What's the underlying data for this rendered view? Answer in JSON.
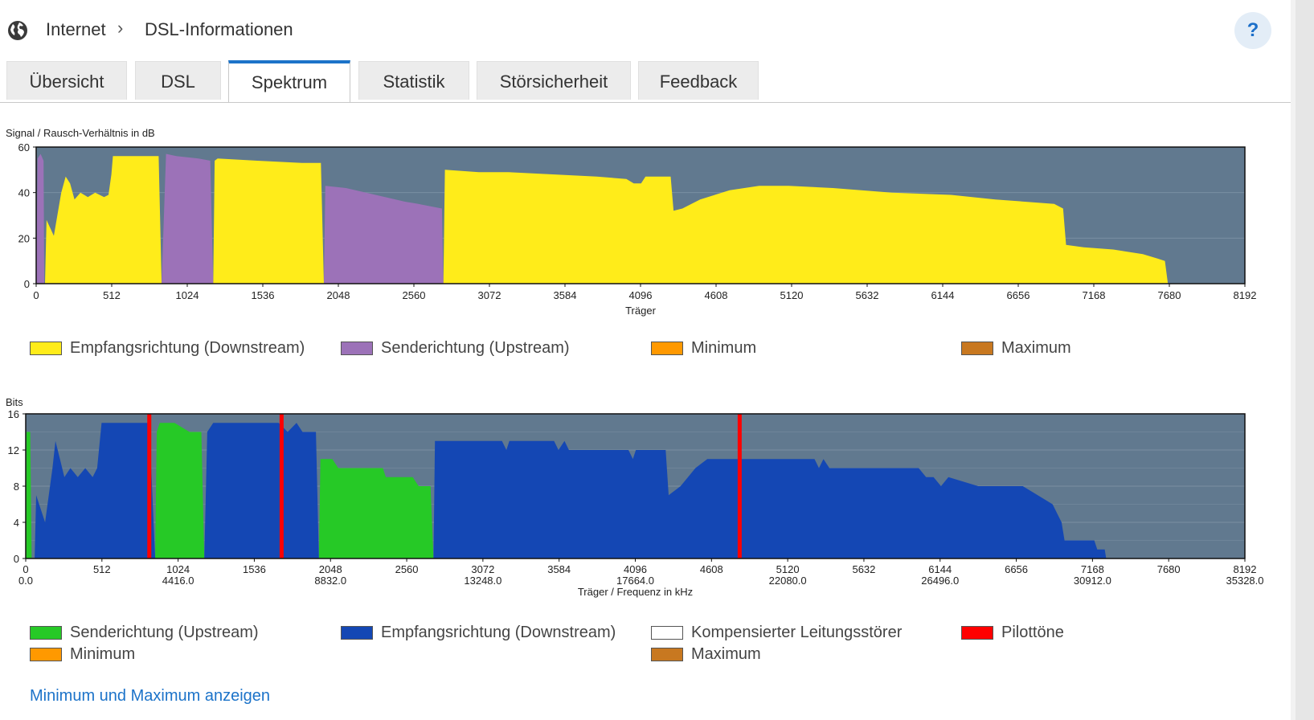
{
  "breadcrumb": {
    "parent": "Internet",
    "separator": "›",
    "current": "DSL-Informationen"
  },
  "help": {
    "label": "?"
  },
  "tabs": [
    {
      "label": "Übersicht",
      "active": false
    },
    {
      "label": "DSL",
      "active": false
    },
    {
      "label": "Spektrum",
      "active": true
    },
    {
      "label": "Statistik",
      "active": false
    },
    {
      "label": "Störsicherheit",
      "active": false
    },
    {
      "label": "Feedback",
      "active": false
    }
  ],
  "colors": {
    "plot_bg": "#61798f",
    "downstream_snr": "#ffec1a",
    "upstream_snr": "#9c72b8",
    "upstream_bits": "#26c926",
    "downstream_bits": "#1447b4",
    "pilot": "#ff0000",
    "minimum": "#ff9900",
    "maximum": "#c87820",
    "compensated": "#ffffff",
    "accent": "#1c73c9"
  },
  "chart_data": [
    {
      "type": "area",
      "title": "Signal / Rausch-Verhältnis in dB",
      "xlabel": "Träger",
      "ylabel": "",
      "xlim": [
        0,
        8192
      ],
      "ylim": [
        0,
        60
      ],
      "xticks": [
        0,
        512,
        1024,
        1536,
        2048,
        2560,
        3072,
        3584,
        4096,
        4608,
        5120,
        5632,
        6144,
        6656,
        7168,
        7680,
        8192
      ],
      "yticks": [
        0,
        20,
        40,
        60
      ],
      "series": [
        {
          "name": "Empfangsrichtung (Downstream)",
          "color_key": "downstream_snr",
          "segments": [
            [
              [
                60,
                0
              ],
              [
                70,
                28
              ],
              [
                120,
                21
              ],
              [
                170,
                40
              ],
              [
                200,
                47
              ],
              [
                230,
                44
              ],
              [
                260,
                37
              ],
              [
                300,
                40
              ],
              [
                350,
                38
              ],
              [
                400,
                40
              ],
              [
                460,
                38
              ],
              [
                490,
                39
              ],
              [
                510,
                48
              ],
              [
                520,
                56
              ],
              [
                700,
                56
              ],
              [
                820,
                56
              ],
              [
                830,
                56
              ],
              [
                850,
                0
              ]
            ],
            [
              [
                1200,
                0
              ],
              [
                1210,
                54
              ],
              [
                1230,
                55
              ],
              [
                1500,
                54
              ],
              [
                1800,
                53
              ],
              [
                1930,
                53
              ],
              [
                1950,
                0
              ]
            ],
            [
              [
                2760,
                0
              ],
              [
                2770,
                50
              ],
              [
                3000,
                49
              ],
              [
                3200,
                49
              ],
              [
                3500,
                48
              ],
              [
                3800,
                47
              ],
              [
                4000,
                46
              ],
              [
                4050,
                44
              ],
              [
                4100,
                44
              ],
              [
                4130,
                47
              ],
              [
                4300,
                47
              ],
              [
                4320,
                32
              ],
              [
                4380,
                33
              ],
              [
                4500,
                37
              ],
              [
                4700,
                41
              ],
              [
                4900,
                43
              ],
              [
                5100,
                43
              ],
              [
                5400,
                42
              ],
              [
                5800,
                40
              ],
              [
                6200,
                39
              ],
              [
                6500,
                37
              ],
              [
                6700,
                36
              ],
              [
                6900,
                35
              ],
              [
                6960,
                33
              ],
              [
                6980,
                17
              ],
              [
                7100,
                16
              ],
              [
                7300,
                15
              ],
              [
                7500,
                13
              ],
              [
                7600,
                11
              ],
              [
                7650,
                10
              ],
              [
                7670,
                0
              ]
            ]
          ]
        },
        {
          "name": "Senderichtung (Upstream)",
          "color_key": "upstream_snr",
          "segments": [
            [
              [
                0,
                0
              ],
              [
                10,
                55
              ],
              [
                30,
                57
              ],
              [
                50,
                54
              ],
              [
                55,
                0
              ]
            ],
            [
              [
                850,
                0
              ],
              [
                880,
                57
              ],
              [
                950,
                56
              ],
              [
                1100,
                55
              ],
              [
                1180,
                54
              ],
              [
                1200,
                0
              ]
            ],
            [
              [
                1950,
                0
              ],
              [
                1960,
                43
              ],
              [
                2100,
                42
              ],
              [
                2300,
                39
              ],
              [
                2500,
                36
              ],
              [
                2590,
                35
              ],
              [
                2750,
                33
              ],
              [
                2760,
                0
              ]
            ]
          ]
        }
      ],
      "legend": [
        {
          "label": "Empfangsrichtung (Downstream)",
          "color_key": "downstream_snr"
        },
        {
          "label": "Senderichtung (Upstream)",
          "color_key": "upstream_snr"
        },
        {
          "label": "Minimum",
          "color_key": "minimum"
        },
        {
          "label": "Maximum",
          "color_key": "maximum"
        }
      ]
    },
    {
      "type": "area",
      "title": "Bits",
      "xlabel": "Träger / Frequenz in kHz",
      "ylabel": "",
      "xlim": [
        0,
        8192
      ],
      "ylim": [
        0,
        16
      ],
      "xticks": [
        0,
        512,
        1024,
        1536,
        2048,
        2560,
        3072,
        3584,
        4096,
        4608,
        5120,
        5632,
        6144,
        6656,
        7168,
        7680,
        8192
      ],
      "freq_labels": [
        "0.0",
        "4416.0",
        "8832.0",
        "13248.0",
        "17664.0",
        "22080.0",
        "26496.0",
        "30912.0",
        "35328.0"
      ],
      "yticks": [
        0,
        4,
        8,
        12,
        16
      ],
      "pilot_tones": [
        833,
        1722,
        4800
      ],
      "series": [
        {
          "name": "Senderichtung (Upstream)",
          "color_key": "upstream_bits",
          "segments": [
            [
              [
                0,
                0
              ],
              [
                5,
                14
              ],
              [
                30,
                14
              ],
              [
                40,
                0
              ]
            ],
            [
              [
                870,
                0
              ],
              [
                880,
                14
              ],
              [
                900,
                15
              ],
              [
                1000,
                15
              ],
              [
                1100,
                14
              ],
              [
                1180,
                14
              ],
              [
                1200,
                0
              ]
            ],
            [
              [
                1970,
                0
              ],
              [
                1980,
                11
              ],
              [
                2060,
                11
              ],
              [
                2100,
                10
              ],
              [
                2400,
                10
              ],
              [
                2420,
                9
              ],
              [
                2600,
                9
              ],
              [
                2640,
                8
              ],
              [
                2720,
                8
              ],
              [
                2740,
                0
              ]
            ]
          ]
        },
        {
          "name": "Empfangsrichtung (Downstream)",
          "color_key": "downstream_bits",
          "segments": [
            [
              [
                60,
                0
              ],
              [
                70,
                7
              ],
              [
                130,
                4
              ],
              [
                180,
                10
              ],
              [
                200,
                13
              ],
              [
                230,
                11
              ],
              [
                260,
                9
              ],
              [
                300,
                10
              ],
              [
                350,
                9
              ],
              [
                400,
                10
              ],
              [
                450,
                9
              ],
              [
                480,
                10
              ],
              [
                510,
                15
              ],
              [
                830,
                15
              ],
              [
                870,
                0
              ]
            ],
            [
              [
                1200,
                0
              ],
              [
                1220,
                14
              ],
              [
                1260,
                15
              ],
              [
                1700,
                15
              ],
              [
                1760,
                14
              ],
              [
                1820,
                15
              ],
              [
                1860,
                14
              ],
              [
                1950,
                14
              ],
              [
                1970,
                0
              ]
            ],
            [
              [
                2740,
                0
              ],
              [
                2750,
                13
              ],
              [
                3200,
                13
              ],
              [
                3230,
                12
              ],
              [
                3250,
                13
              ],
              [
                3550,
                13
              ],
              [
                3580,
                12
              ],
              [
                3620,
                13
              ],
              [
                3650,
                12
              ],
              [
                4050,
                12
              ],
              [
                4080,
                11
              ],
              [
                4100,
                12
              ],
              [
                4300,
                12
              ],
              [
                4320,
                7
              ],
              [
                4400,
                8
              ],
              [
                4450,
                9
              ],
              [
                4500,
                10
              ],
              [
                4580,
                11
              ],
              [
                5300,
                11
              ],
              [
                5330,
                10
              ],
              [
                5360,
                11
              ],
              [
                5400,
                10
              ],
              [
                6000,
                10
              ],
              [
                6050,
                9
              ],
              [
                6100,
                9
              ],
              [
                6150,
                8
              ],
              [
                6200,
                9
              ],
              [
                6400,
                8
              ],
              [
                6600,
                8
              ],
              [
                6700,
                8
              ],
              [
                6800,
                7
              ],
              [
                6900,
                6
              ],
              [
                6960,
                4
              ],
              [
                6980,
                2
              ],
              [
                7180,
                2
              ],
              [
                7200,
                1
              ],
              [
                7250,
                1
              ],
              [
                7260,
                0
              ]
            ]
          ]
        }
      ],
      "legend": [
        {
          "label": "Senderichtung (Upstream)",
          "color_key": "upstream_bits"
        },
        {
          "label": "Empfangsrichtung (Downstream)",
          "color_key": "downstream_bits"
        },
        {
          "label": "Kompensierter Leitungsstörer",
          "color_key": "compensated"
        },
        {
          "label": "Pilottöne",
          "color_key": "pilot"
        },
        {
          "label": "Minimum",
          "color_key": "minimum"
        },
        {
          "label": "Maximum",
          "color_key": "maximum"
        }
      ]
    }
  ],
  "link": {
    "label": "Minimum und Maximum anzeigen"
  }
}
